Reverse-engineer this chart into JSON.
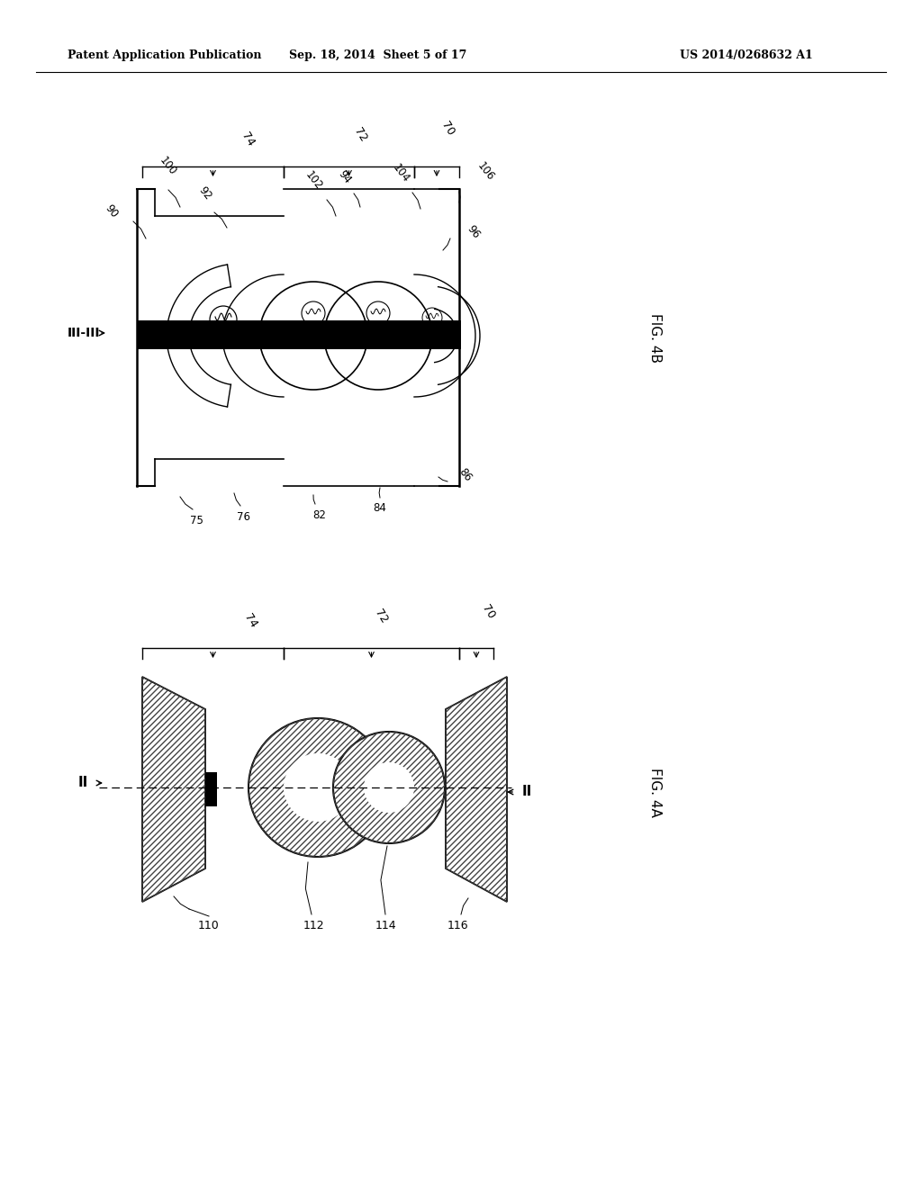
{
  "header_left": "Patent Application Publication",
  "header_center": "Sep. 18, 2014  Sheet 5 of 17",
  "header_right": "US 2014/0268632 A1",
  "fig4b_label": "FIG. 4B",
  "fig4a_label": "FIG. 4A",
  "background_color": "#ffffff",
  "line_color": "#000000",
  "text_color": "#000000"
}
